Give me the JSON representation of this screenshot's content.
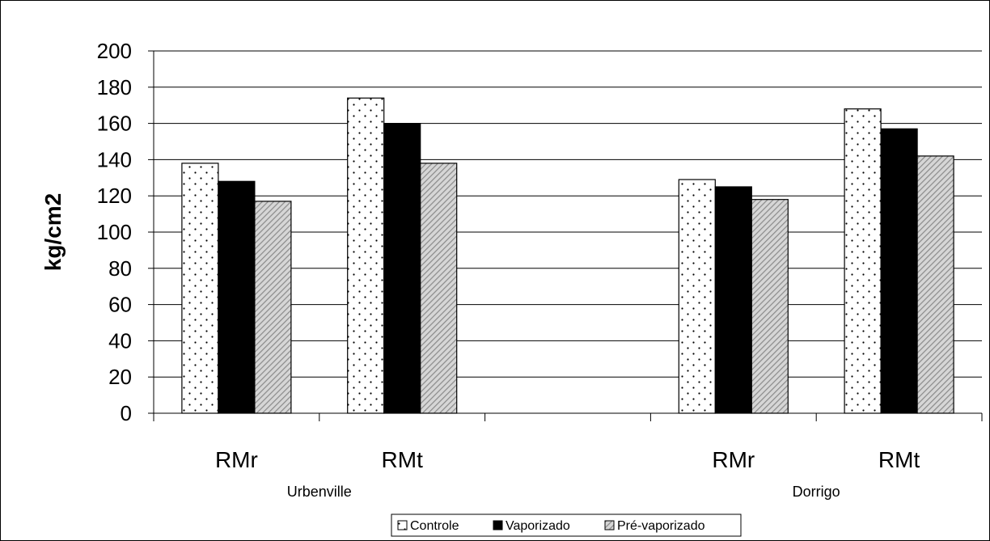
{
  "chart_data": {
    "type": "bar",
    "ylabel": "kg/cm2",
    "ylim": [
      0,
      200
    ],
    "yticks": [
      0,
      20,
      40,
      60,
      80,
      100,
      120,
      140,
      160,
      180,
      200
    ],
    "grid": true,
    "legend_position": "bottom",
    "slots": [
      {
        "category": "RMr",
        "group": "Urbenville",
        "values": [
          138,
          128,
          117
        ]
      },
      {
        "category": "RMt",
        "group": "Urbenville",
        "values": [
          174,
          160,
          138
        ]
      },
      {
        "category": "",
        "group": "",
        "values": [
          null,
          null,
          null
        ]
      },
      {
        "category": "RMr",
        "group": "Dorrigo",
        "values": [
          129,
          125,
          118
        ]
      },
      {
        "category": "RMt",
        "group": "Dorrigo",
        "values": [
          168,
          157,
          142
        ]
      }
    ],
    "groups": [
      "Urbenville",
      "Dorrigo"
    ],
    "series": [
      {
        "name": "Controle",
        "fill": "dots",
        "color": "#ffffff"
      },
      {
        "name": "Vaporizado",
        "fill": "solid",
        "color": "#000000"
      },
      {
        "name": "Pré-vaporizado",
        "fill": "diagonal-hatch",
        "color": "#9a9a9a"
      }
    ]
  }
}
